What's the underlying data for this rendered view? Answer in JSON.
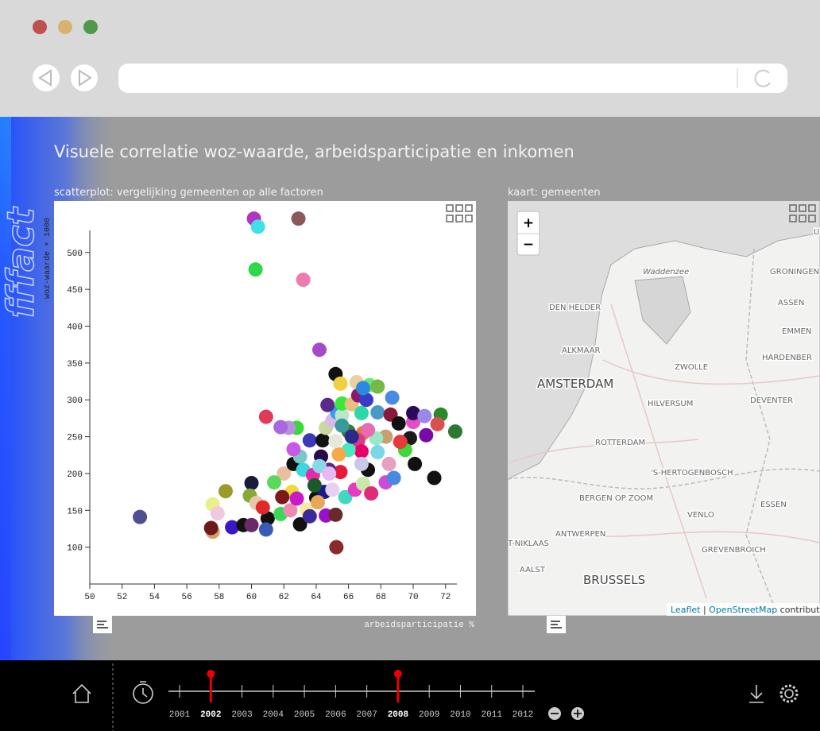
{
  "title": "Visuele correlatie woz-waarde, arbeidsparticipatie en inkomen",
  "logo": "fffact",
  "scatter_panel": "scatterplot: vergelijking gemeenten op alle factoren",
  "map_panel": "kaart: gemeenten",
  "chart_data": {
    "type": "scatter",
    "xlabel": "arbeidsparticipatie %",
    "ylabel": "woz-waarde × 1000",
    "xlim": [
      50,
      72.7
    ],
    "ylim": [
      50,
      530
    ],
    "xticks": [
      50,
      52,
      54,
      56,
      58,
      60,
      62,
      64,
      66,
      68,
      70,
      72
    ],
    "yticks": [
      100,
      150,
      200,
      250,
      300,
      350,
      400,
      450,
      500
    ],
    "x": [
      60.15,
      60.4,
      62.9,
      60.25,
      63.2,
      64.2,
      53.1,
      60.9,
      65.25,
      71.3,
      72.6,
      57.6,
      57.5,
      58.8,
      58.4,
      57.6,
      57.9,
      60.0,
      59.9,
      59.5,
      60.0,
      61.0,
      60.9,
      60.3,
      60.7,
      61.8,
      62.4,
      63.0,
      62.5,
      62.8,
      63.4,
      63.6,
      64.0,
      64.6,
      65.2,
      64.5,
      65.0,
      65.8,
      66.4,
      66.9,
      67.4,
      67.2,
      68.3,
      68.8,
      62.0,
      62.6,
      63.2,
      63.8,
      64.3,
      63.0,
      63.6,
      64.4,
      62.8,
      62.3,
      61.8,
      64.6,
      65.0,
      65.3,
      64.7,
      65.6,
      65.6,
      66.2,
      66.6,
      66.8,
      67.3,
      67.8,
      67.1,
      67.8,
      68.7,
      68.6,
      69.1,
      70.0,
      70.0,
      70.7,
      71.7,
      71.5,
      70.8,
      69.8,
      69.5,
      70.1,
      69.2,
      68.3,
      67.7,
      66.9,
      66.0,
      66.6,
      67.8,
      66.8,
      66.0,
      65.4,
      65.5,
      64.8,
      64.2,
      66.8,
      68.5,
      62.6,
      61.4,
      61.9,
      65.2,
      65.6,
      65.2,
      65.5,
      66.5,
      66.9,
      67.2,
      66.2,
      64.8,
      63.9,
      64.1
    ],
    "values": [
      546,
      535,
      546,
      477,
      463,
      368,
      141,
      277,
      100,
      194,
      257,
      121,
      126,
      127,
      176,
      158,
      146,
      187,
      170,
      130,
      130,
      139,
      124,
      160,
      154,
      145,
      150,
      131,
      175,
      166,
      151,
      142,
      167,
      143,
      144,
      175,
      178,
      168,
      178,
      186,
      173,
      205,
      188,
      194,
      200,
      213,
      205,
      198,
      223,
      223,
      245,
      245,
      262,
      262,
      263,
      262,
      272,
      283,
      293,
      279,
      295,
      294,
      306,
      282,
      320,
      318,
      300,
      283,
      303,
      280,
      268,
      270,
      282,
      278,
      280,
      267,
      252,
      248,
      232,
      213,
      243,
      250,
      248,
      255,
      257,
      245,
      229,
      230,
      232,
      226,
      202,
      205,
      210,
      213,
      213,
      233,
      188,
      168,
      244,
      265,
      335,
      322,
      324,
      316,
      259,
      250,
      200,
      184,
      161
    ],
    "colors": [
      "#b234c0",
      "#3fe0e8",
      "#8a5a5a",
      "#2ed84a",
      "#ee7ab0",
      "#a648c8",
      "#4f4f94",
      "#e03a5a",
      "#8a2a2a",
      "#111111",
      "#2c7a32",
      "#d8a060",
      "#6e1a1a",
      "#3a18c8",
      "#9a9a2a",
      "#e8f088",
      "#f0c8e0",
      "#1a1a3a",
      "#88a838",
      "#111111",
      "#6a2a6a",
      "#111111",
      "#3a5ab8",
      "#e8c8a8",
      "#e02a2a",
      "#3ad858",
      "#ee8ab0",
      "#111111",
      "#f0d838",
      "#c81ac8",
      "#f8e8a0",
      "#3a2a9a",
      "#111111",
      "#9a10c8",
      "#6a2a2a",
      "#1a1a8a",
      "#e8d0f0",
      "#40d8c0",
      "#e83ac0",
      "#c8e8a8",
      "#e02a7a",
      "#111111",
      "#d04ad8",
      "#4a88e0",
      "#e8c0a0",
      "#111111",
      "#3ad8e0",
      "#e82aa8",
      "#2a0a4a",
      "#78c8c8",
      "#3a3ab8",
      "#111111",
      "#3ad838",
      "#b890e0",
      "#a868e0",
      "#c8d8a0",
      "#d8b8e8",
      "#3a9ae8",
      "#5a2a8a",
      "#b8e8c8",
      "#3ae83a",
      "#e8c080",
      "#8a1a6a",
      "#2ad8a8",
      "#6ae870",
      "#78b848",
      "#3a3ac8",
      "#4a9ac8",
      "#4a8ae0",
      "#8a1a3a",
      "#111111",
      "#e84ac8",
      "#2a0a5a",
      "#9a88e8",
      "#2a8a2a",
      "#d85050",
      "#7a0aa8",
      "#1a1a1a",
      "#3ad838",
      "#111111",
      "#e83a3a",
      "#c8a070",
      "#9ae8c8",
      "#e87a28",
      "#3a7a3a",
      "#d83a8a",
      "#78d8e8",
      "#e8006a",
      "#4ae8c0",
      "#f8a848",
      "#e81a3a",
      "#5a2a8a",
      "#88d8e8",
      "#c8c8e8",
      "#e8a0c0",
      "#c858e8",
      "#5ad858",
      "#7a1a1a",
      "#e8e8d8",
      "#3a9a9a",
      "#111111",
      "#f0d040",
      "#e8d0a0",
      "#2a8ae0",
      "#e86ab0",
      "#2a2a8a",
      "#e8b8f0",
      "#1a5a2a",
      "#e8a858"
    ]
  },
  "map": {
    "zoom_in": "+",
    "zoom_out": "−",
    "labels": [
      "Waddenzee",
      "GRONINGEN",
      "DEN HELDER",
      "ASSEN",
      "EMMEN",
      "ALKMAAR",
      "ZWOLLE",
      "HARDENBER",
      "AMSTERDAM",
      "HILVERSUM",
      "DEVENTER",
      "ROTTERDAM",
      "'S-HERTOGENBOSCH",
      "BERGEN OP ZOOM",
      "ESSEN",
      "VENLO",
      "ANTWERPEN",
      "T-NIKLAAS",
      "GREVENBROICH",
      "AALST",
      "BRUSSELS",
      "UWE"
    ],
    "attribution": [
      "Leaflet",
      " | ",
      "OpenStreetMap",
      " contributors"
    ]
  },
  "timeline": {
    "years": [
      2001,
      2002,
      2003,
      2004,
      2005,
      2006,
      2007,
      2008,
      2009,
      2010,
      2011,
      2012
    ],
    "selected": [
      2002,
      2008
    ]
  }
}
